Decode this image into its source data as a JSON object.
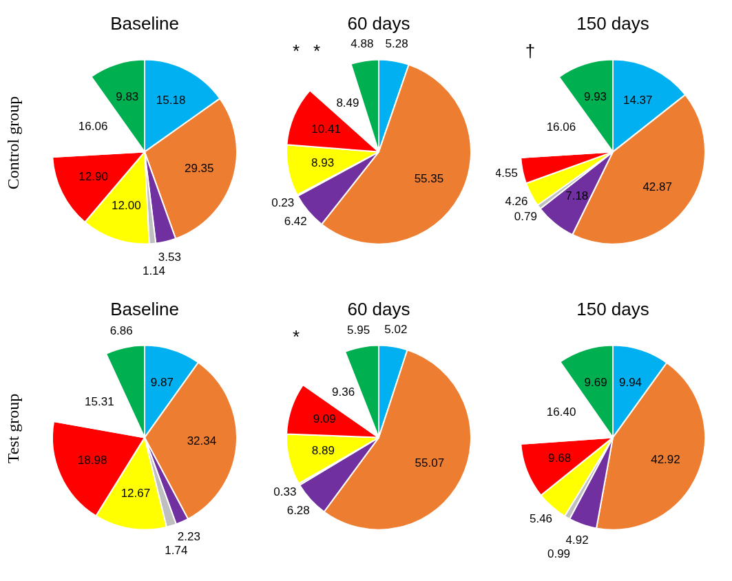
{
  "chart_data": [
    {
      "type": "pie",
      "title": "Baseline",
      "ylabel": "Control group",
      "categories": [
        null,
        null,
        null,
        null,
        null,
        null,
        null,
        null
      ],
      "values": [
        15.18,
        29.35,
        3.53,
        1.14,
        12.0,
        12.9,
        16.06,
        9.83
      ],
      "colors": [
        "#00b0f0",
        "#ed7d31",
        "#7030a0",
        "#bfbfbf",
        "#ffff00",
        "#ff0000",
        "#ffffff",
        "#00b050"
      ],
      "value_labels": [
        "15.18",
        "29.35",
        "3.53",
        "1.14",
        "12.00",
        "12.90",
        "16.06",
        "9.83"
      ]
    },
    {
      "type": "pie",
      "title": "60 days",
      "categories": [
        null,
        null,
        null,
        null,
        null,
        null,
        null,
        null
      ],
      "values": [
        5.28,
        55.35,
        6.42,
        0.23,
        8.93,
        10.41,
        8.49,
        4.88
      ],
      "colors": [
        "#00b0f0",
        "#ed7d31",
        "#7030a0",
        "#bfbfbf",
        "#ffff00",
        "#ff0000",
        "#ffffff",
        "#00b050"
      ],
      "value_labels": [
        "5.28",
        "55.35",
        "6.42",
        "0.23",
        "8.93",
        "10.41",
        "8.49",
        "4.88"
      ],
      "annotations": [
        "*",
        "*"
      ]
    },
    {
      "type": "pie",
      "title": "150 days",
      "categories": [
        null,
        null,
        null,
        null,
        null,
        null,
        null,
        null
      ],
      "values": [
        14.37,
        42.87,
        7.18,
        0.79,
        4.26,
        4.55,
        16.06,
        9.93
      ],
      "colors": [
        "#00b0f0",
        "#ed7d31",
        "#7030a0",
        "#bfbfbf",
        "#ffff00",
        "#ff0000",
        "#ffffff",
        "#00b050"
      ],
      "value_labels": [
        "14.37",
        "42.87",
        "7.18",
        "0.79",
        "4.26",
        "4.55",
        "16.06",
        "9.93"
      ],
      "annotations": [
        "†"
      ]
    },
    {
      "type": "pie",
      "title": "Baseline",
      "ylabel": "Test group",
      "categories": [
        null,
        null,
        null,
        null,
        null,
        null,
        null,
        null
      ],
      "values": [
        9.87,
        32.34,
        2.23,
        1.74,
        12.67,
        18.98,
        15.31,
        6.86
      ],
      "colors": [
        "#00b0f0",
        "#ed7d31",
        "#7030a0",
        "#bfbfbf",
        "#ffff00",
        "#ff0000",
        "#ffffff",
        "#00b050"
      ],
      "value_labels": [
        "9.87",
        "32.34",
        "2.23",
        "1.74",
        "12.67",
        "18.98",
        "15.31",
        "6.86"
      ]
    },
    {
      "type": "pie",
      "title": "60 days",
      "categories": [
        null,
        null,
        null,
        null,
        null,
        null,
        null,
        null
      ],
      "values": [
        5.02,
        55.07,
        6.28,
        0.33,
        8.89,
        9.09,
        9.36,
        5.95
      ],
      "colors": [
        "#00b0f0",
        "#ed7d31",
        "#7030a0",
        "#bfbfbf",
        "#ffff00",
        "#ff0000",
        "#ffffff",
        "#00b050"
      ],
      "value_labels": [
        "5.02",
        "55.07",
        "6.28",
        "0.33",
        "8.89",
        "9.09",
        "9.36",
        "5.95"
      ],
      "annotations": [
        "*"
      ]
    },
    {
      "type": "pie",
      "title": "150 days",
      "categories": [
        null,
        null,
        null,
        null,
        null,
        null,
        null,
        null
      ],
      "values": [
        9.94,
        42.92,
        4.92,
        0.99,
        5.46,
        9.68,
        16.4,
        9.69
      ],
      "colors": [
        "#00b0f0",
        "#ed7d31",
        "#7030a0",
        "#bfbfbf",
        "#ffff00",
        "#ff0000",
        "#ffffff",
        "#00b050"
      ],
      "value_labels": [
        "9.94",
        "42.92",
        "4.92",
        "0.99",
        "5.46",
        "9.68",
        "16.40",
        "9.69"
      ]
    }
  ]
}
